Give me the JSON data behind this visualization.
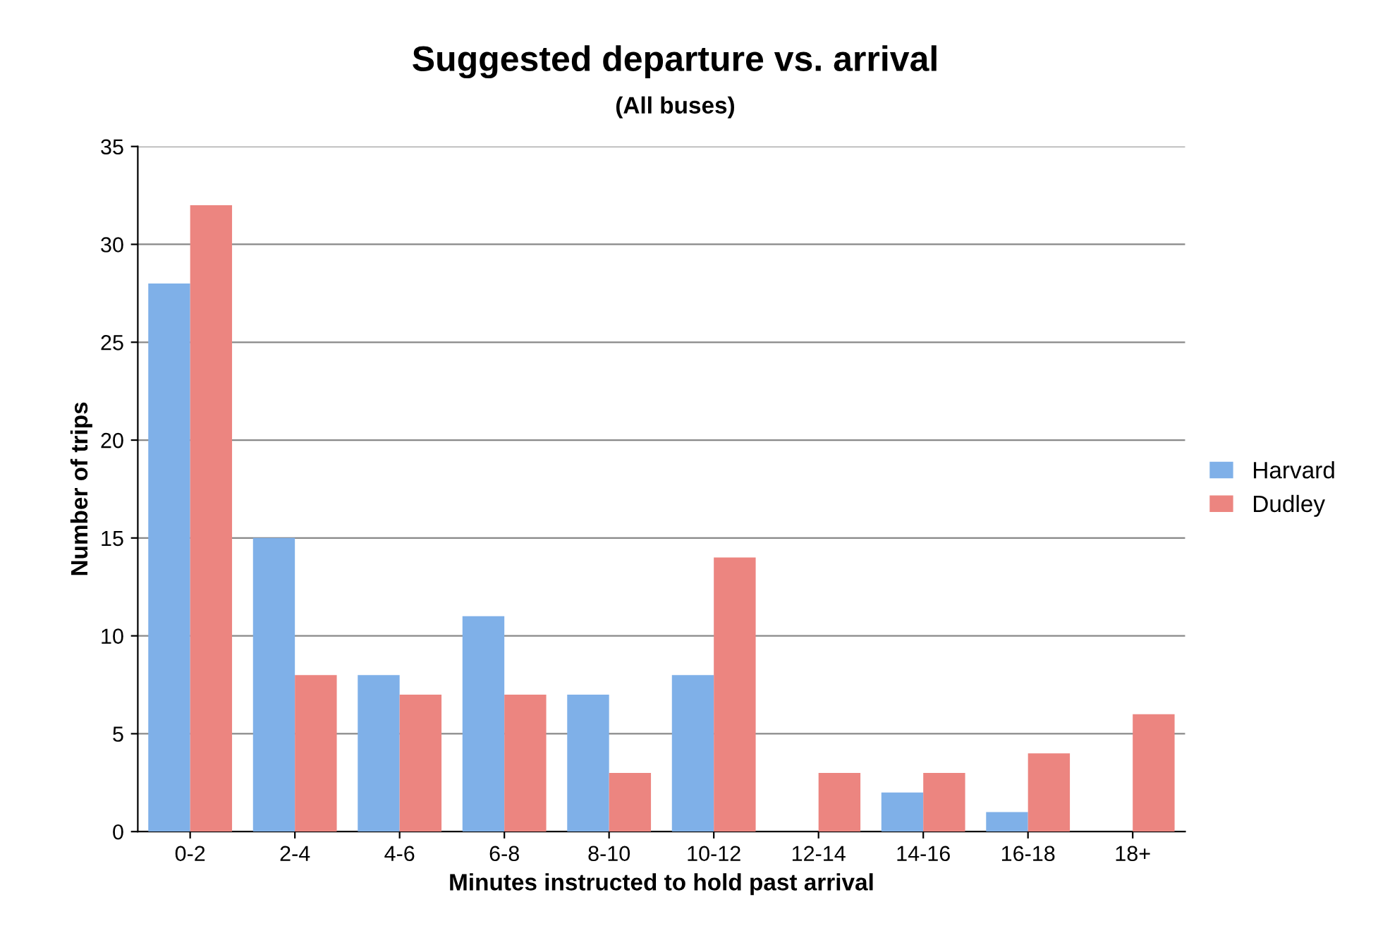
{
  "chart_data": {
    "type": "bar",
    "title": "Suggested departure vs. arrival",
    "subtitle": "(All buses)",
    "xlabel": "Minutes instructed to hold past arrival",
    "ylabel": "Number of trips",
    "categories": [
      "0-2",
      "2-4",
      "4-6",
      "6-8",
      "8-10",
      "10-12",
      "12-14",
      "14-16",
      "16-18",
      "18+"
    ],
    "series": [
      {
        "name": "Harvard",
        "color": "#7fb0e8",
        "values": [
          28,
          15,
          8,
          11,
          7,
          8,
          0,
          2,
          1,
          0
        ]
      },
      {
        "name": "Dudley",
        "color": "#ec8580",
        "values": [
          32,
          8,
          7,
          7,
          3,
          14,
          3,
          3,
          4,
          6
        ]
      }
    ],
    "ylim": [
      0,
      35
    ],
    "yticks": [
      0,
      5,
      10,
      15,
      20,
      25,
      30,
      35
    ],
    "grid": "y",
    "legend": "right"
  }
}
